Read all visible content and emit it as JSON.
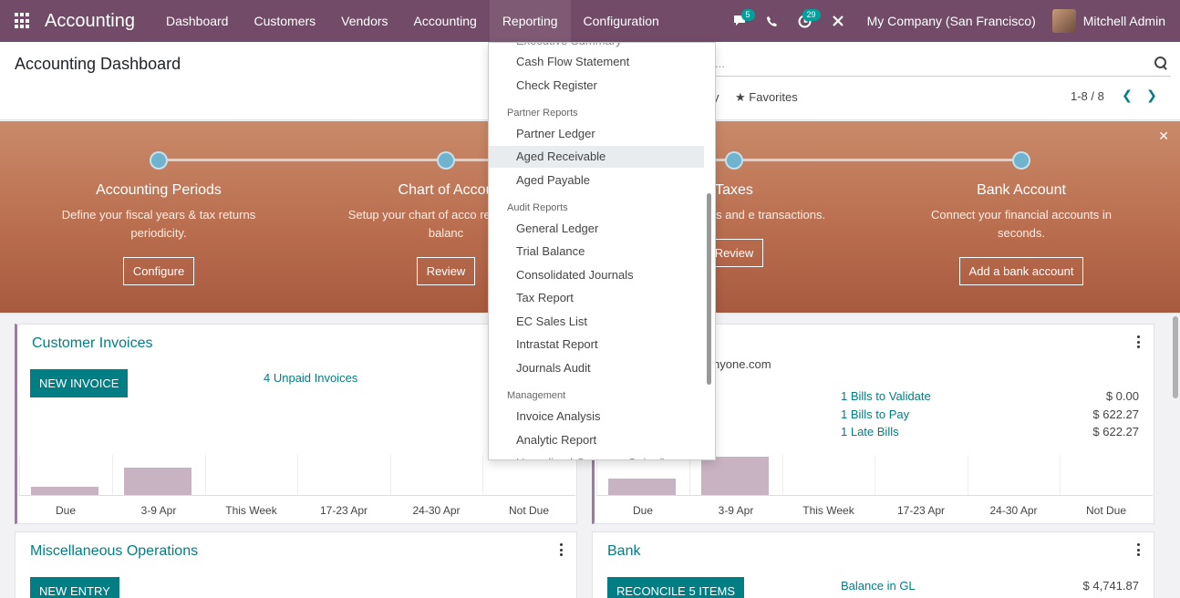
{
  "navbar": {
    "brand": "Accounting",
    "menu": [
      "Dashboard",
      "Customers",
      "Vendors",
      "Accounting",
      "Reporting",
      "Configuration"
    ],
    "active_menu": "Reporting",
    "chat_badge": "5",
    "activity_badge": "29",
    "company": "My Company (San Francisco)",
    "user": "Mitchell Admin"
  },
  "control_panel": {
    "title": "Accounting Dashboard",
    "search_placeholder": "...",
    "filter_fragment": "y",
    "favorites": "Favorites",
    "pager": "1-8 / 8"
  },
  "banner": {
    "steps": [
      {
        "title": "Accounting Periods",
        "desc": "Define your fiscal years & tax returns periodicity.",
        "button": "Configure"
      },
      {
        "title": "Chart of Accou",
        "desc": "Setup your chart of acco record initial balanc",
        "button": "Review"
      },
      {
        "title": "Taxes",
        "desc": "Taxes for sales and e transactions.",
        "button": "Review"
      },
      {
        "title": "Bank Account",
        "desc": "Connect your financial accounts in seconds.",
        "button": "Add a bank account"
      }
    ]
  },
  "customer_invoices": {
    "title": "Customer Invoices",
    "button": "NEW INVOICE",
    "unpaid": "4 Unpaid Invoices",
    "chart_labels": [
      "Due",
      "3-9 Apr",
      "This Week",
      "17-23 Apr",
      "24-30 Apr",
      "Not Due"
    ]
  },
  "vendor_bills": {
    "email_fragment": "nyone.com",
    "rows": [
      {
        "label": "1 Bills to Validate",
        "amount": "$ 0.00"
      },
      {
        "label": "1 Bills to Pay",
        "amount": "$ 622.27"
      },
      {
        "label": "1 Late Bills",
        "amount": "$ 622.27"
      }
    ],
    "chart_labels": [
      "Due",
      "3-9 Apr",
      "This Week",
      "17-23 Apr",
      "24-30 Apr",
      "Not Due"
    ]
  },
  "misc_operations": {
    "title": "Miscellaneous Operations",
    "button": "NEW ENTRY"
  },
  "bank": {
    "title": "Bank",
    "button": "RECONCILE 5 ITEMS",
    "balance_label": "Balance in GL",
    "balance_amount": "$ 4,741.87"
  },
  "reporting_dropdown": {
    "partial_top": "Executive Summary",
    "items_top": [
      "Cash Flow Statement",
      "Check Register"
    ],
    "partner_header": "Partner Reports",
    "partner_items": [
      "Partner Ledger",
      "Aged Receivable",
      "Aged Payable"
    ],
    "hovered": "Aged Receivable",
    "audit_header": "Audit Reports",
    "audit_items": [
      "General Ledger",
      "Trial Balance",
      "Consolidated Journals",
      "Tax Report",
      "EC Sales List",
      "Intrastat Report",
      "Journals Audit"
    ],
    "management_header": "Management",
    "management_items": [
      "Invoice Analysis",
      "Analytic Report"
    ],
    "partial_bottom": "Unrealized Currency Gains/Losses"
  }
}
